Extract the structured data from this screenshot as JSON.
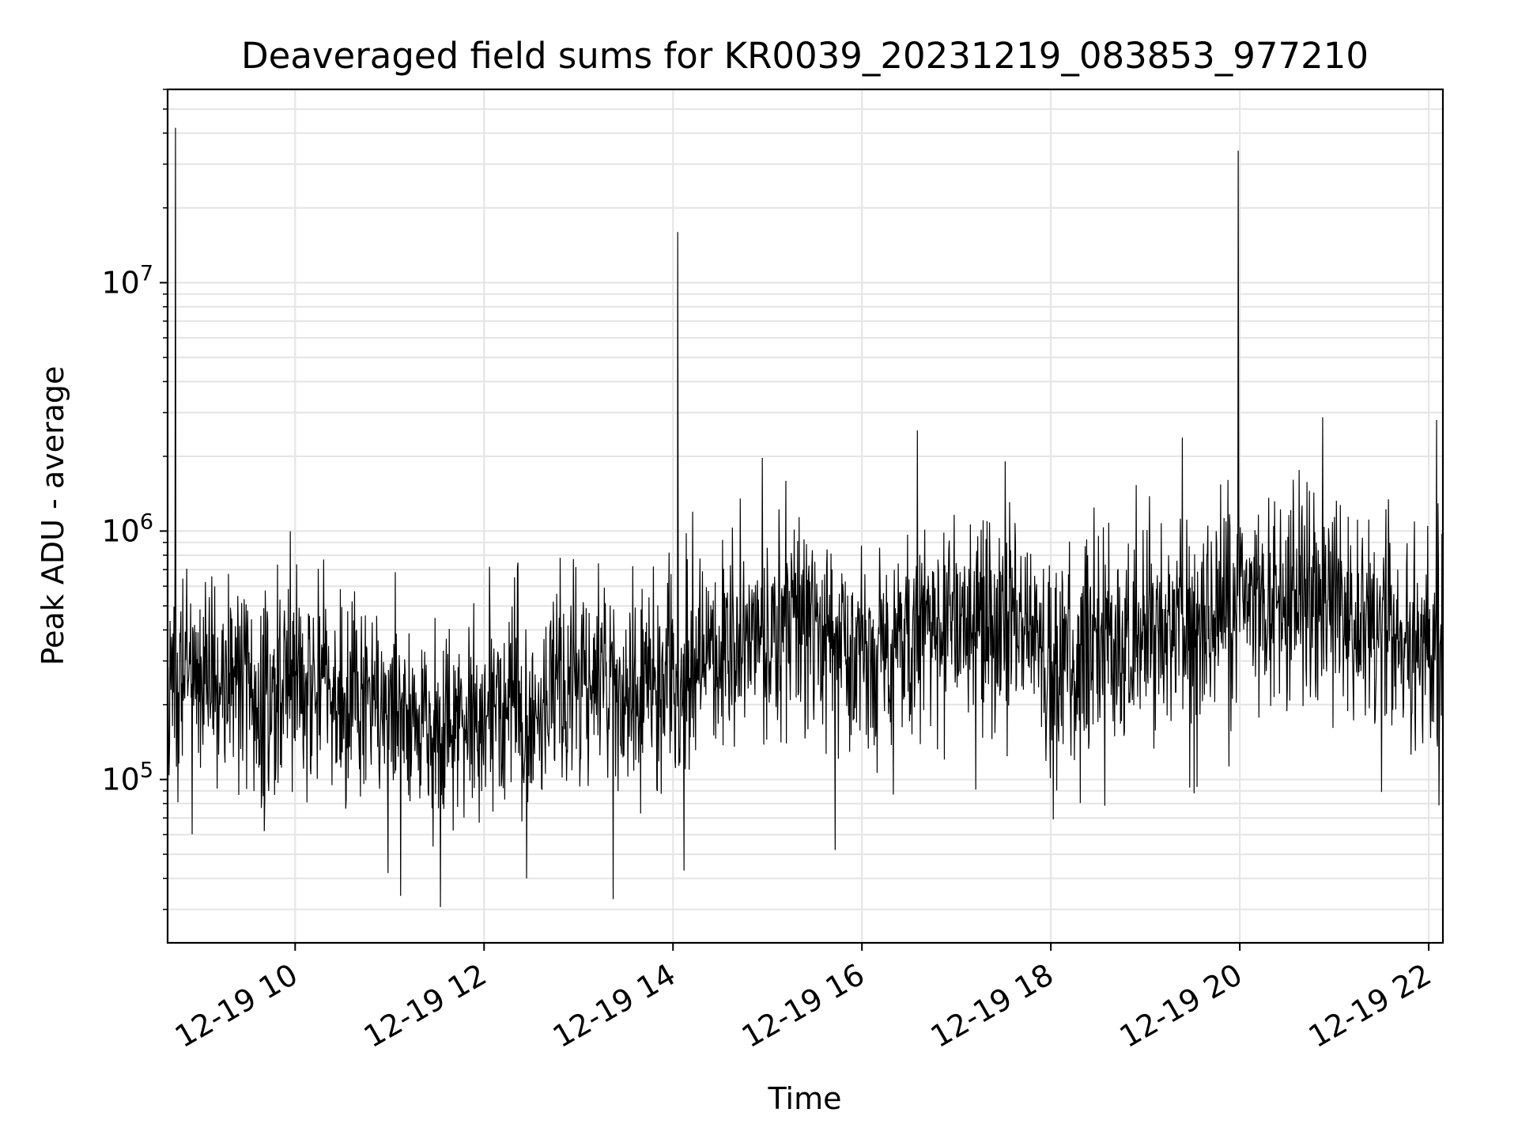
{
  "chart_data": {
    "type": "line",
    "title": "Deaveraged field sums for KR0039_20231219_083853_977210",
    "xlabel": "Time",
    "ylabel": "Peak ADU - average",
    "yscale": "log",
    "ylim": [
      22000,
      60000000
    ],
    "xlim": [
      "2023-12-19 08:39",
      "2023-12-19 22:09"
    ],
    "grid": true,
    "line_color": "#000000",
    "grid_color": "#e6e6e6",
    "x_ticks": [
      {
        "label": "12-19 10",
        "value": "2023-12-19 10:00"
      },
      {
        "label": "12-19 12",
        "value": "2023-12-19 12:00"
      },
      {
        "label": "12-19 14",
        "value": "2023-12-19 14:00"
      },
      {
        "label": "12-19 16",
        "value": "2023-12-19 16:00"
      },
      {
        "label": "12-19 18",
        "value": "2023-12-19 18:00"
      },
      {
        "label": "12-19 20",
        "value": "2023-12-19 20:00"
      },
      {
        "label": "12-19 22",
        "value": "2023-12-19 22:00"
      }
    ],
    "y_ticks": [
      {
        "mantissa": "10",
        "exponent": "5",
        "value": 100000
      },
      {
        "mantissa": "10",
        "exponent": "6",
        "value": 1000000
      },
      {
        "mantissa": "10",
        "exponent": "7",
        "value": 10000000
      }
    ],
    "series": [
      {
        "typical_level": [
          [
            "2023-12-19 08:39",
            250000
          ],
          [
            "2023-12-19 09:30",
            220000
          ],
          [
            "2023-12-19 10:00",
            260000
          ],
          [
            "2023-12-19 10:30",
            190000
          ],
          [
            "2023-12-19 11:00",
            230000
          ],
          [
            "2023-12-19 11:30",
            160000
          ],
          [
            "2023-12-19 12:00",
            190000
          ],
          [
            "2023-12-19 12:30",
            200000
          ],
          [
            "2023-12-19 13:00",
            260000
          ],
          [
            "2023-12-19 13:30",
            220000
          ],
          [
            "2023-12-19 14:00",
            240000
          ],
          [
            "2023-12-19 14:30",
            300000
          ],
          [
            "2023-12-19 15:00",
            380000
          ],
          [
            "2023-12-19 15:30",
            420000
          ],
          [
            "2023-12-19 16:00",
            300000
          ],
          [
            "2023-12-19 16:30",
            380000
          ],
          [
            "2023-12-19 17:00",
            470000
          ],
          [
            "2023-12-19 17:30",
            450000
          ],
          [
            "2023-12-19 18:00",
            300000
          ],
          [
            "2023-12-19 18:30",
            350000
          ],
          [
            "2023-12-19 19:00",
            380000
          ],
          [
            "2023-12-19 19:30",
            430000
          ],
          [
            "2023-12-19 20:00",
            500000
          ],
          [
            "2023-12-19 20:30",
            520000
          ],
          [
            "2023-12-19 21:00",
            540000
          ],
          [
            "2023-12-19 21:30",
            380000
          ],
          [
            "2023-12-19 22:09",
            420000
          ]
        ],
        "spikes": [
          [
            "2023-12-19 08:44",
            42000000
          ],
          [
            "2023-12-19 14:03",
            16000000
          ],
          [
            "2023-12-19 19:59",
            34000000
          ],
          [
            "2023-12-19 22:05",
            2800000
          ]
        ],
        "dips": [
          [
            "2023-12-19 11:07",
            34000
          ],
          [
            "2023-12-19 13:22",
            33000
          ],
          [
            "2023-12-19 15:43",
            52000
          ],
          [
            "2023-12-19 12:27",
            40000
          ],
          [
            "2023-12-19 10:59",
            42000
          ],
          [
            "2023-12-19 14:07",
            43000
          ]
        ]
      }
    ]
  }
}
